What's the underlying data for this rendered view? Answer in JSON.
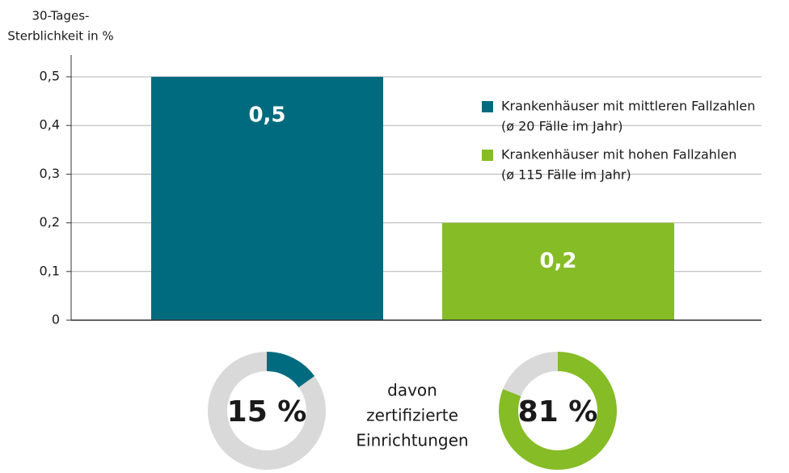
{
  "chart_data": [
    {
      "type": "bar",
      "ylabel": [
        "30-Tages-",
        "Sterblichkeit in %"
      ],
      "categories": [
        null
      ],
      "series": [
        {
          "name": "Krankenhäuser mit mittleren Fallzahlen",
          "name_detail": "(ø 20 Fälle im Jahr)",
          "color": "#006b7f",
          "values": [
            0.5
          ],
          "value_labels": [
            "0,5"
          ]
        },
        {
          "name": "Krankenhäuser mit hohen Fallzahlen",
          "name_detail": "(ø 115 Fälle im Jahr)",
          "color": "#86bc25",
          "values": [
            0.2
          ],
          "value_labels": [
            "0,2"
          ]
        }
      ],
      "ylim": [
        0,
        0.5
      ],
      "yticks": [
        0,
        {
          "value": 0.1,
          "label": "0,1"
        },
        {
          "value": 0.2,
          "label": "0,2"
        },
        {
          "value": 0.3,
          "label": "0,3"
        },
        {
          "value": 0.4,
          "label": "0,4"
        },
        {
          "value": 0.5,
          "label": "0,5"
        }
      ],
      "grid": true,
      "legend": "upper right"
    },
    {
      "type": "pie",
      "donut": true,
      "values": [
        15,
        85
      ],
      "value_labels": [
        "15 %"
      ],
      "colors": [
        "#006b7f",
        "#d9d9d9"
      ]
    },
    {
      "type": "pie",
      "donut": true,
      "values": [
        81,
        19
      ],
      "value_labels": [
        "81 %"
      ],
      "colors": [
        "#86bc25",
        "#d9d9d9"
      ]
    }
  ],
  "annotation": [
    "davon",
    "zertifizierte",
    "Einrichtungen"
  ]
}
